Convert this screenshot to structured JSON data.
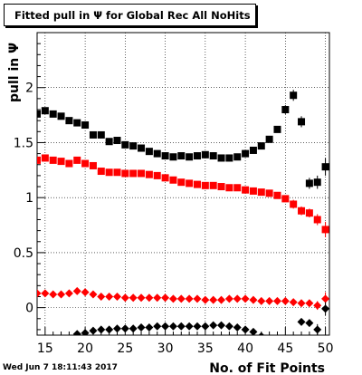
{
  "chart_data": {
    "type": "scatter",
    "title": "Fitted pull in  Ψ  for Global Rec All NoHits",
    "xlabel": "No. of Fit Points",
    "ylabel": "pull in  Ψ",
    "xlim": [
      14,
      50.5
    ],
    "ylim": [
      -0.25,
      2.5
    ],
    "x_ticks": [
      15,
      20,
      25,
      30,
      35,
      40,
      45,
      50
    ],
    "y_ticks": [
      0,
      0.5,
      1,
      1.5,
      2
    ],
    "y_tick_labels": [
      "0",
      "0.5",
      "1",
      "1.5",
      "2"
    ],
    "grid": true,
    "series": [
      {
        "color": "#000000",
        "marker": "square",
        "x": [
          14,
          15,
          16,
          17,
          18,
          19,
          20,
          21,
          22,
          23,
          24,
          25,
          26,
          27,
          28,
          29,
          30,
          31,
          32,
          33,
          34,
          35,
          36,
          37,
          38,
          39,
          40,
          41,
          42,
          43,
          44,
          45,
          46,
          47,
          48,
          49,
          50
        ],
        "y": [
          1.76,
          1.79,
          1.76,
          1.74,
          1.7,
          1.68,
          1.66,
          1.57,
          1.57,
          1.51,
          1.52,
          1.48,
          1.47,
          1.45,
          1.42,
          1.4,
          1.38,
          1.37,
          1.38,
          1.37,
          1.38,
          1.39,
          1.38,
          1.36,
          1.36,
          1.37,
          1.4,
          1.43,
          1.47,
          1.53,
          1.62,
          1.8,
          1.93,
          1.69,
          1.13,
          1.14,
          1.28
        ],
        "err": [
          0.03,
          0.03,
          0.03,
          0.03,
          0.03,
          0.03,
          0.03,
          0.03,
          0.03,
          0.03,
          0.03,
          0.03,
          0.03,
          0.03,
          0.03,
          0.03,
          0.03,
          0.03,
          0.03,
          0.03,
          0.03,
          0.03,
          0.03,
          0.03,
          0.03,
          0.03,
          0.03,
          0.03,
          0.03,
          0.03,
          0.03,
          0.04,
          0.05,
          0.05,
          0.05,
          0.06,
          0.08
        ]
      },
      {
        "color": "#ff0000",
        "marker": "square",
        "x": [
          14,
          15,
          16,
          17,
          18,
          19,
          20,
          21,
          22,
          23,
          24,
          25,
          26,
          27,
          28,
          29,
          30,
          31,
          32,
          33,
          34,
          35,
          36,
          37,
          38,
          39,
          40,
          41,
          42,
          43,
          44,
          45,
          46,
          47,
          48,
          49,
          50
        ],
        "y": [
          1.34,
          1.36,
          1.34,
          1.33,
          1.31,
          1.34,
          1.31,
          1.29,
          1.24,
          1.23,
          1.23,
          1.22,
          1.22,
          1.22,
          1.21,
          1.2,
          1.18,
          1.16,
          1.14,
          1.13,
          1.12,
          1.11,
          1.11,
          1.1,
          1.09,
          1.09,
          1.07,
          1.06,
          1.05,
          1.04,
          1.02,
          0.99,
          0.94,
          0.88,
          0.86,
          0.8,
          0.71
        ],
        "err": [
          0.03,
          0.03,
          0.03,
          0.03,
          0.03,
          0.03,
          0.03,
          0.03,
          0.03,
          0.03,
          0.03,
          0.03,
          0.03,
          0.03,
          0.03,
          0.03,
          0.03,
          0.03,
          0.03,
          0.03,
          0.03,
          0.03,
          0.03,
          0.03,
          0.03,
          0.03,
          0.03,
          0.03,
          0.03,
          0.03,
          0.03,
          0.03,
          0.04,
          0.04,
          0.04,
          0.05,
          0.07
        ]
      },
      {
        "color": "#ff0000",
        "marker": "diamond",
        "x": [
          14,
          15,
          16,
          17,
          18,
          19,
          20,
          21,
          22,
          23,
          24,
          25,
          26,
          27,
          28,
          29,
          30,
          31,
          32,
          33,
          34,
          35,
          36,
          37,
          38,
          39,
          40,
          41,
          42,
          43,
          44,
          45,
          46,
          47,
          48,
          49,
          50
        ],
        "y": [
          0.13,
          0.13,
          0.12,
          0.12,
          0.13,
          0.15,
          0.14,
          0.12,
          0.1,
          0.1,
          0.1,
          0.09,
          0.09,
          0.09,
          0.09,
          0.09,
          0.09,
          0.08,
          0.08,
          0.08,
          0.08,
          0.07,
          0.07,
          0.07,
          0.08,
          0.08,
          0.08,
          0.07,
          0.06,
          0.06,
          0.06,
          0.06,
          0.05,
          0.04,
          0.04,
          0.02,
          0.08
        ],
        "err": [
          0.02,
          0.02,
          0.02,
          0.02,
          0.02,
          0.02,
          0.02,
          0.02,
          0.02,
          0.02,
          0.02,
          0.02,
          0.02,
          0.02,
          0.02,
          0.02,
          0.02,
          0.02,
          0.02,
          0.02,
          0.02,
          0.02,
          0.02,
          0.02,
          0.02,
          0.02,
          0.02,
          0.02,
          0.02,
          0.02,
          0.02,
          0.02,
          0.02,
          0.03,
          0.03,
          0.04,
          0.06
        ]
      },
      {
        "color": "#000000",
        "marker": "diamond",
        "x": [
          19,
          20,
          21,
          22,
          23,
          24,
          25,
          26,
          27,
          28,
          29,
          30,
          31,
          32,
          33,
          34,
          35,
          36,
          37,
          38,
          39,
          40,
          41,
          42,
          43,
          44,
          45,
          46,
          47,
          48,
          49,
          50
        ],
        "y": [
          -0.24,
          -0.23,
          -0.21,
          -0.2,
          -0.2,
          -0.19,
          -0.19,
          -0.19,
          -0.18,
          -0.18,
          -0.17,
          -0.17,
          -0.17,
          -0.17,
          -0.17,
          -0.17,
          -0.17,
          -0.16,
          -0.16,
          -0.17,
          -0.18,
          -0.2,
          -0.22,
          -0.26,
          -0.28,
          -0.3,
          -0.33,
          -0.36,
          -0.13,
          -0.14,
          -0.2,
          -0.01
        ],
        "err": [
          0.02,
          0.02,
          0.02,
          0.02,
          0.02,
          0.02,
          0.02,
          0.02,
          0.02,
          0.02,
          0.02,
          0.02,
          0.02,
          0.02,
          0.02,
          0.02,
          0.02,
          0.02,
          0.02,
          0.02,
          0.02,
          0.02,
          0.02,
          0.02,
          0.02,
          0.02,
          0.02,
          0.02,
          0.03,
          0.03,
          0.05,
          0.06
        ]
      }
    ],
    "timestamp": "Wed Jun  7 18:11:43 2017"
  }
}
